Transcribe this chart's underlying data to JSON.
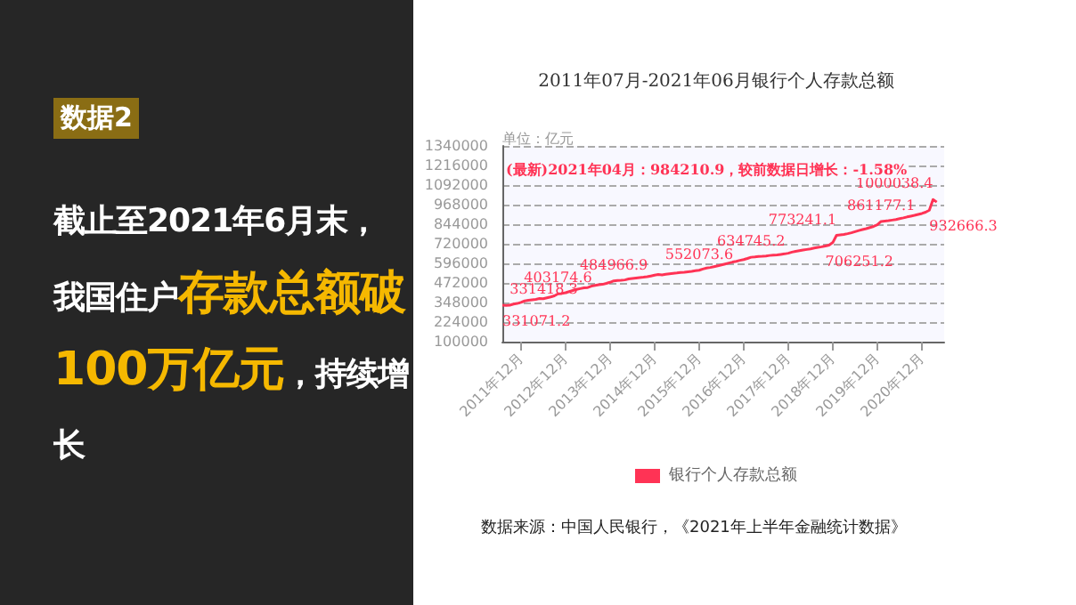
{
  "chart_data": {
    "type": "line",
    "title": "2011年07月-2021年06月银行个人存款总额",
    "categories": [
      null,
      null,
      null,
      null,
      null,
      "2011年12月",
      null,
      null,
      null,
      null,
      null,
      null,
      null,
      null,
      null,
      null,
      null,
      "2012年12月",
      null,
      null,
      null,
      null,
      null,
      null,
      null,
      null,
      null,
      null,
      null,
      "2013年12月",
      null,
      null,
      null,
      null,
      null,
      null,
      null,
      null,
      null,
      null,
      null,
      "2014年12月",
      null,
      null,
      null,
      null,
      null,
      null,
      null,
      null,
      null,
      null,
      null,
      "2015年12月",
      null,
      null,
      null,
      null,
      null,
      null,
      null,
      null,
      null,
      null,
      null,
      "2016年12月",
      null,
      null,
      null,
      null,
      null,
      null,
      null,
      null,
      null,
      null,
      null,
      "2017年12月",
      null,
      null,
      null,
      null,
      null,
      null,
      null,
      null,
      null,
      null,
      null,
      "2018年12月",
      null,
      null,
      null,
      null,
      null,
      null,
      null,
      null,
      null,
      null,
      null,
      "2019年12月",
      null,
      null,
      null,
      null,
      null,
      null,
      null,
      null,
      null,
      null,
      null,
      "2020年12月",
      null,
      null,
      null,
      null,
      null,
      null
    ],
    "series": [
      {
        "name": "银行个人存款总额",
        "color": "#ff3355",
        "values": [
          331071.2,
          329000,
          331418.3,
          338000,
          342000,
          349000,
          358000,
          362000,
          365000,
          368000,
          373000,
          372000,
          378000,
          383000,
          390000,
          403174.6,
          405000,
          410000,
          417000,
          424000,
          431000,
          436000,
          441000,
          443000,
          452000,
          456000,
          461000,
          463000,
          469000,
          476000,
          484966.9,
          488000,
          489000,
          491000,
          497000,
          500000,
          503000,
          506000,
          508000,
          511000,
          516000,
          521000,
          525000,
          523000,
          527000,
          530000,
          533000,
          535000,
          538000,
          540000,
          543000,
          545000,
          549000,
          552073.6,
          560000,
          566000,
          570000,
          575000,
          580000,
          586000,
          592000,
          598000,
          604000,
          609000,
          615000,
          620000,
          627000,
          634745.2,
          637000,
          640000,
          641000,
          643000,
          646000,
          648000,
          650000,
          653000,
          656000,
          660000,
          667000,
          672000,
          676000,
          680000,
          684000,
          688000,
          693000,
          697000,
          701000,
          706251.2,
          712000,
          728000,
          773241.1,
          776000,
          779000,
          784000,
          790000,
          797000,
          804000,
          810000,
          816000,
          823000,
          830000,
          840000,
          861177.1,
          864000,
          866000,
          870000,
          874000,
          879000,
          884000,
          890000,
          895000,
          900000,
          906000,
          912000,
          920000,
          932666.3,
          1000038.4,
          984210.9,
          null,
          null
        ],
        "value_labels": [
          "331071.2",
          null,
          "331418.3",
          null,
          null,
          null,
          null,
          null,
          null,
          null,
          null,
          null,
          null,
          null,
          null,
          "403174.6",
          null,
          null,
          null,
          null,
          null,
          null,
          null,
          null,
          null,
          null,
          null,
          null,
          null,
          null,
          "484966.9",
          null,
          null,
          null,
          null,
          null,
          null,
          null,
          null,
          null,
          null,
          null,
          null,
          null,
          null,
          null,
          null,
          null,
          null,
          null,
          null,
          null,
          null,
          "552073.6",
          null,
          null,
          null,
          null,
          null,
          null,
          null,
          null,
          null,
          null,
          null,
          null,
          null,
          "634745.2",
          null,
          null,
          null,
          null,
          null,
          null,
          null,
          null,
          null,
          null,
          null,
          null,
          null,
          null,
          null,
          null,
          null,
          null,
          null,
          "706251.2",
          null,
          null,
          "773241.1",
          null,
          null,
          null,
          null,
          null,
          null,
          null,
          null,
          null,
          null,
          null,
          "861177.1",
          null,
          null,
          null,
          null,
          null,
          null,
          null,
          null,
          null,
          null,
          null,
          null,
          "932666.3",
          "1000038.4",
          null,
          null,
          null
        ]
      }
    ],
    "ylim": [
      100000,
      1340000
    ],
    "yticks": [
      100000,
      224000,
      348000,
      472000,
      596000,
      720000,
      844000,
      968000,
      1092000,
      1216000,
      1340000
    ],
    "grid": "y",
    "legend": "bottom",
    "marker": "none",
    "line_style": "solid",
    "annotations": [
      "数据2",
      "截止至2021年6月末，我国住户",
      "存款总额破100万亿元",
      "，持续增长",
      "单位：亿元",
      "(最新)2021年04月：984210.9，较前数据日增长：-1.58%",
      "数据来源：中国人民银行，《2021年上半年金融统计数据》"
    ]
  }
}
